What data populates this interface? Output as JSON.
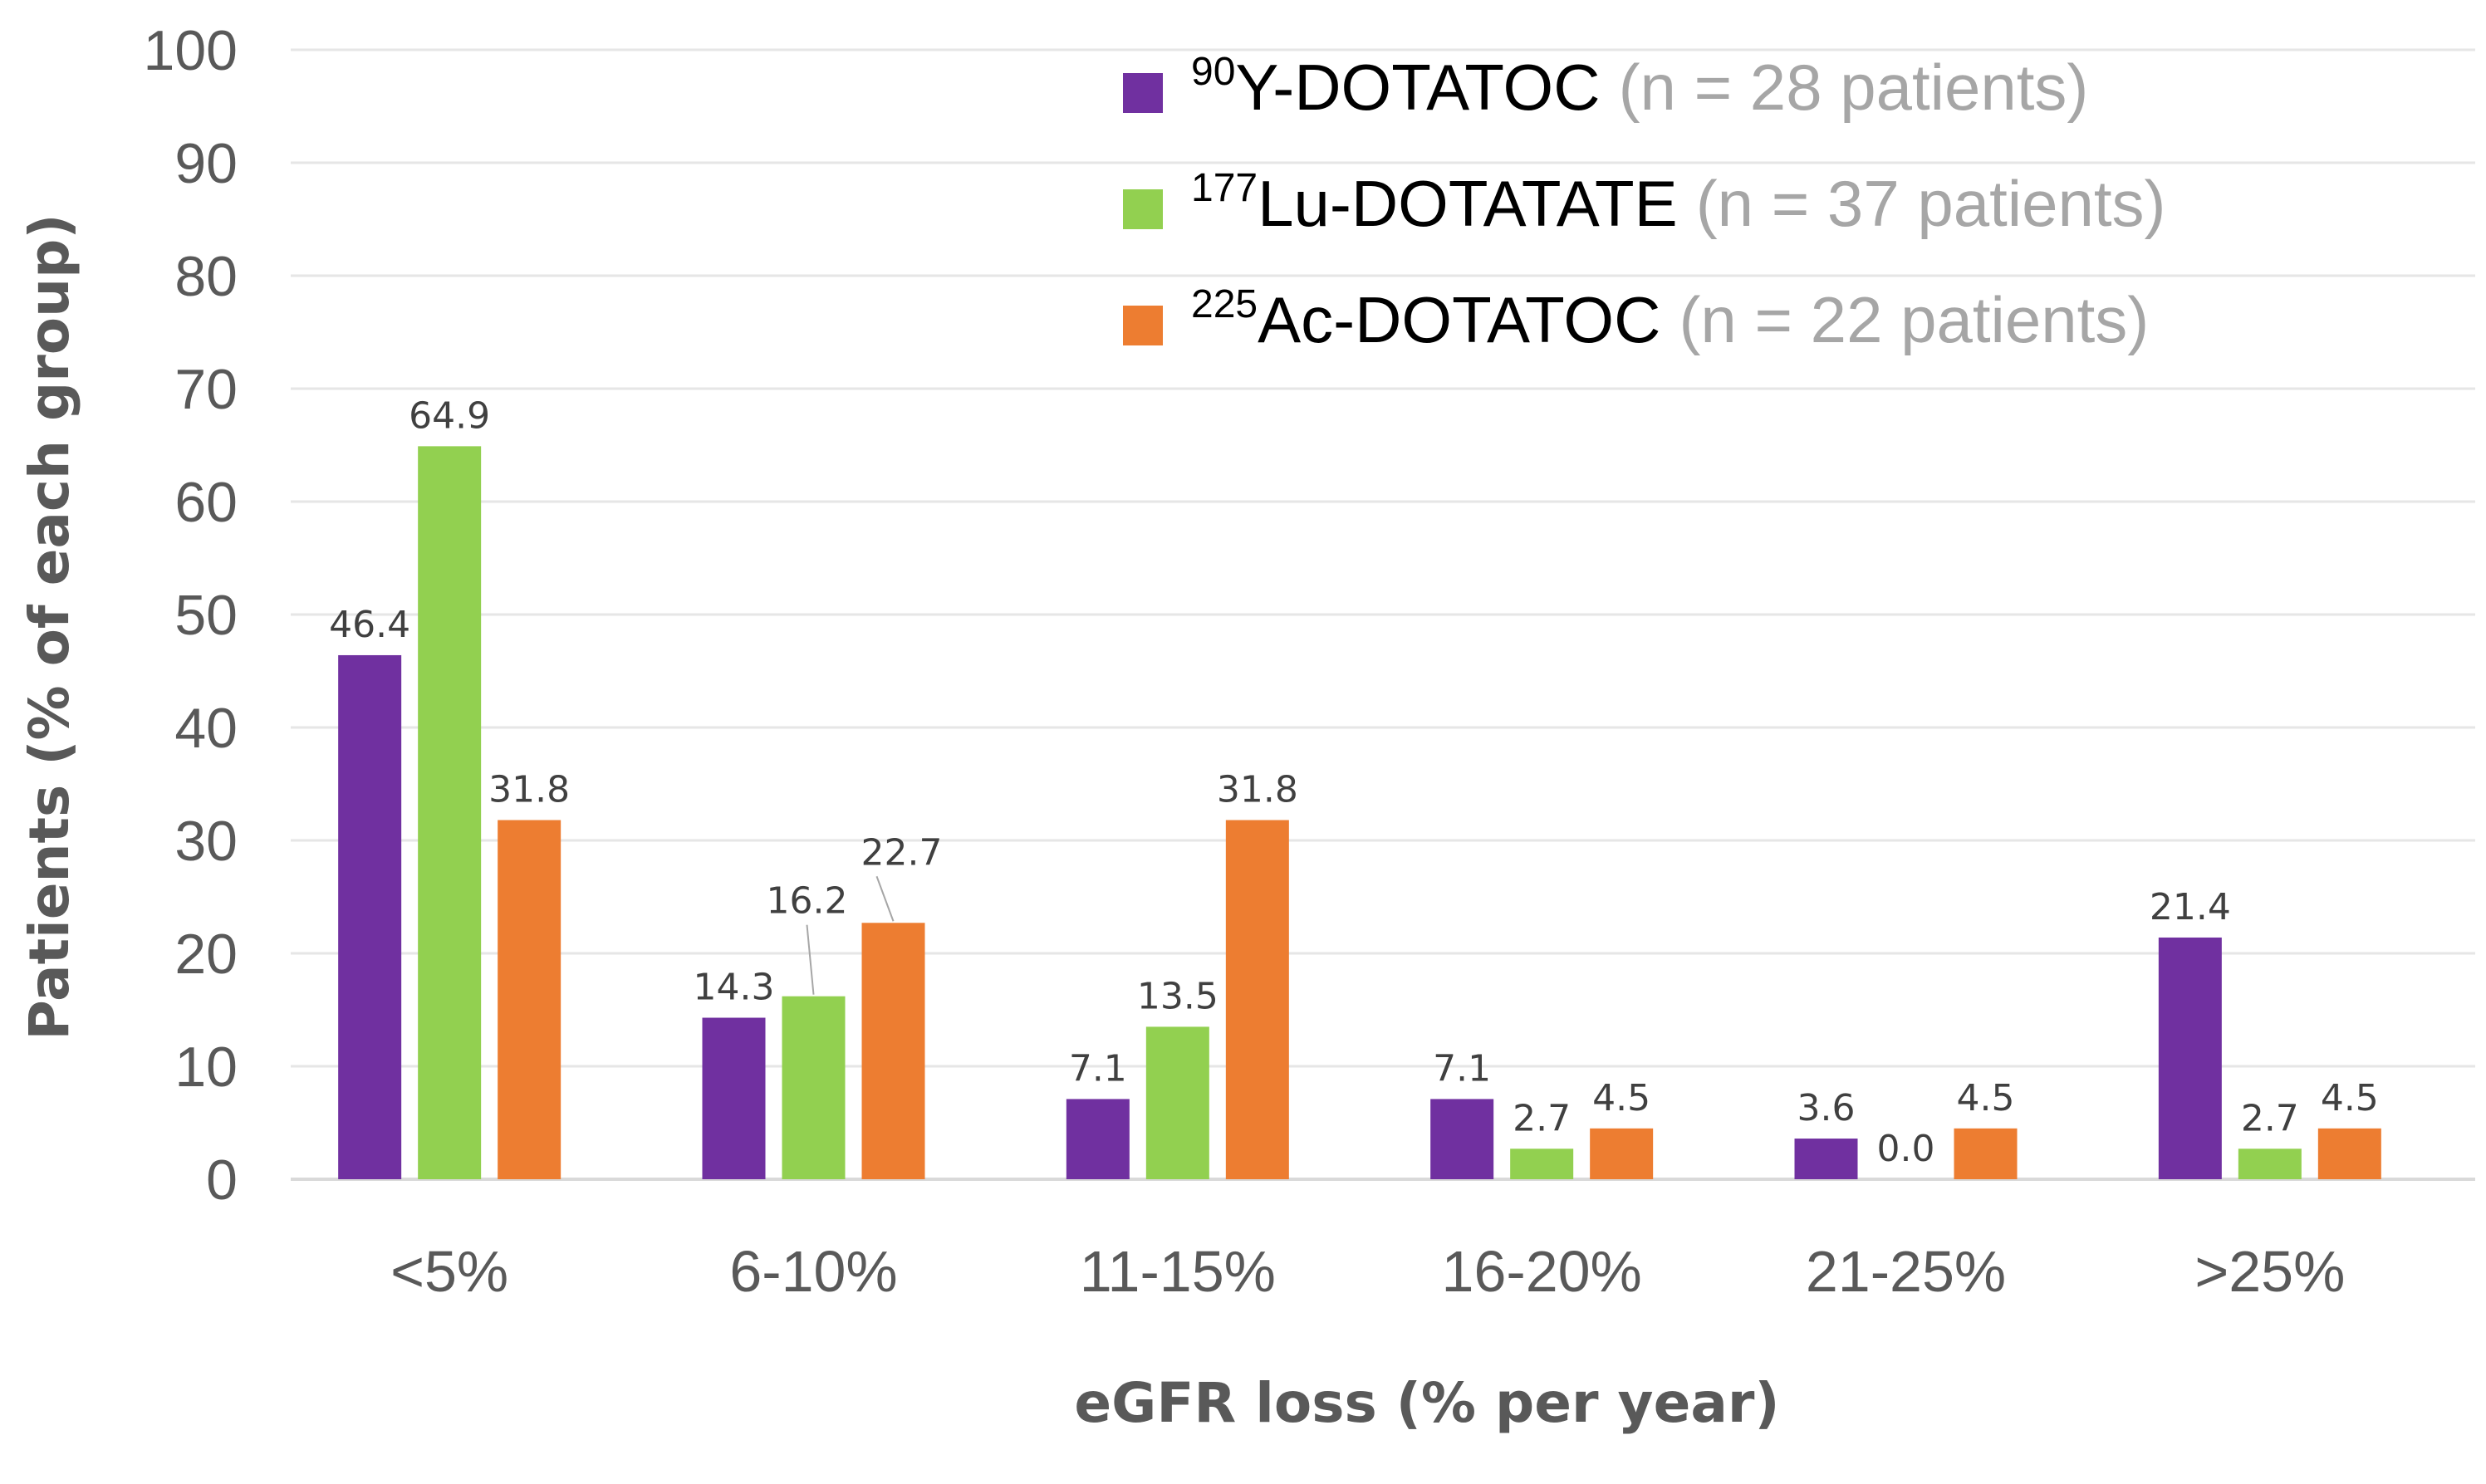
{
  "chart_data": {
    "type": "bar",
    "title": "",
    "xlabel": "eGFR loss (% per year)",
    "ylabel": "Patients (% of each group)",
    "ylim": [
      0,
      100
    ],
    "yticks": [
      0,
      10,
      20,
      30,
      40,
      50,
      60,
      70,
      80,
      90,
      100
    ],
    "grid": true,
    "legend_position": "top-right",
    "categories": [
      "<5%",
      "6-10%",
      "11-15%",
      "16-20%",
      "21-25%",
      ">25%"
    ],
    "series": [
      {
        "name": "Y-DOTATOC",
        "isotope_mass": "90",
        "count_label": "(n = 28 patients)",
        "color": "#7030a0",
        "values": [
          46.4,
          14.3,
          7.1,
          7.1,
          3.6,
          21.4
        ],
        "labels": [
          "46.4",
          "14.3",
          "7.1",
          "7.1",
          "3.6",
          "21.4"
        ]
      },
      {
        "name": "Lu-DOTATATE",
        "isotope_mass": "177",
        "count_label": "(n = 37 patients)",
        "color": "#92d050",
        "values": [
          64.9,
          16.2,
          13.5,
          2.7,
          0.0,
          2.7
        ],
        "labels": [
          "64.9",
          "16.2",
          "13.5",
          "2.7",
          "0.0",
          "2.7"
        ]
      },
      {
        "name": "Ac-DOTATOC",
        "isotope_mass": "225",
        "count_label": "(n = 22 patients)",
        "color": "#ed7d31",
        "values": [
          31.8,
          22.7,
          31.8,
          4.5,
          4.5,
          4.5
        ],
        "labels": [
          "31.8",
          "22.7",
          "31.8",
          "4.5",
          "4.5",
          "4.5"
        ]
      }
    ]
  }
}
